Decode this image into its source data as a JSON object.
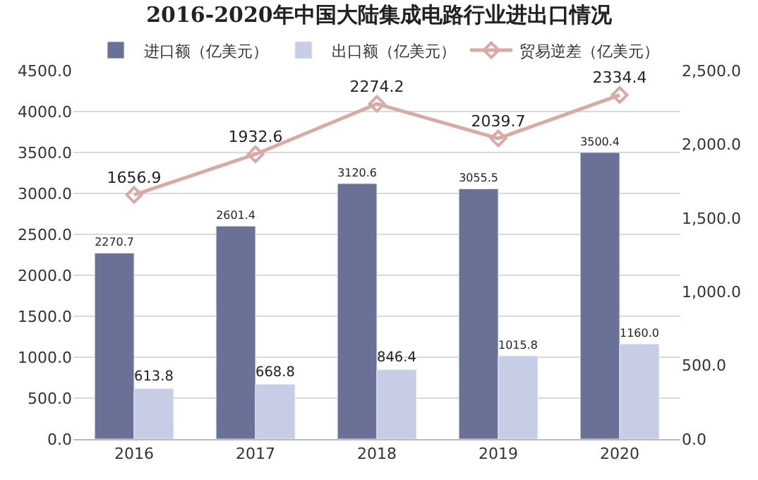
{
  "chart_data": {
    "type": "bar",
    "title": "2016-2020年中国大陆集成电路行业进出口情况",
    "categories": [
      "2016",
      "2017",
      "2018",
      "2019",
      "2020"
    ],
    "series": [
      {
        "name": "进口额（亿美元）",
        "color": "#6b7096",
        "values": [
          2270.7,
          2601.4,
          3120.6,
          3055.5,
          3500.4
        ],
        "value_labels": [
          "2270.7",
          "2601.4",
          "3120.6",
          "3055.5",
          "3500.4"
        ]
      },
      {
        "name": "出口额（亿美元）",
        "color": "#c6cde5",
        "values": [
          613.8,
          668.8,
          846.4,
          1015.8,
          1160.0
        ],
        "value_labels": [
          "613.8",
          "668.8",
          "846.4",
          "1015.8",
          "1160.0"
        ]
      },
      {
        "name": "贸易逆差（亿美元）",
        "type": "line",
        "axis": "y2",
        "color": "#d8aaa5",
        "marker": "diamond",
        "values": [
          1656.9,
          1932.6,
          2274.2,
          2039.7,
          2334.4
        ],
        "value_labels": [
          "1656.9",
          "1932.6",
          "2274.2",
          "2039.7",
          "2334.4"
        ]
      }
    ],
    "ylim": [
      0,
      4500
    ],
    "yticks": [
      {
        "value": 0,
        "label": "0.0"
      },
      {
        "value": 500,
        "label": "500.0"
      },
      {
        "value": 1000,
        "label": "1000.0"
      },
      {
        "value": 1500,
        "label": "1500.0"
      },
      {
        "value": 2000,
        "label": "2000.0"
      },
      {
        "value": 2500,
        "label": "2500.0"
      },
      {
        "value": 3000,
        "label": "3000.0"
      },
      {
        "value": 3500,
        "label": "3500.0"
      },
      {
        "value": 4000,
        "label": "4000.0"
      },
      {
        "value": 4500,
        "label": "4500.0"
      }
    ],
    "y2lim": [
      0,
      2500
    ],
    "y2ticks": [
      {
        "value": 0,
        "label": "0.0"
      },
      {
        "value": 500,
        "label": "500.0"
      },
      {
        "value": 1000,
        "label": "1,000.0"
      },
      {
        "value": 1500,
        "label": "1,500.0"
      },
      {
        "value": 2000,
        "label": "2,000.0"
      },
      {
        "value": 2500,
        "label": "2,500.0"
      }
    ],
    "grid": "y",
    "legend": "top"
  }
}
